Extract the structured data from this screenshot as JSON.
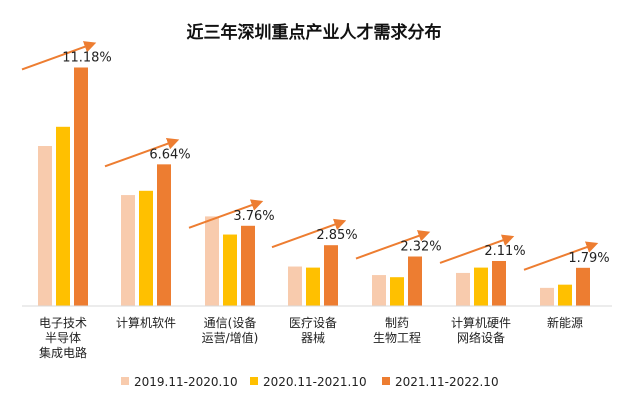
{
  "chart_data": {
    "type": "bar",
    "title": "近三年深圳重点产业人才需求分布",
    "xlabel": "",
    "ylabel": "",
    "categories": [
      [
        "电子技术",
        "半导体",
        "集成电路"
      ],
      [
        "计算机软件"
      ],
      [
        "通信(设备",
        "运营/增值)"
      ],
      [
        "医疗设备",
        "器械"
      ],
      [
        "制药",
        "生物工程"
      ],
      [
        "计算机硬件",
        "网络设备"
      ],
      [
        "新能源"
      ]
    ],
    "series": [
      {
        "name": "2019.11-2020.10",
        "color": "#F8CBAD",
        "values": [
          7.5,
          5.2,
          4.2,
          1.85,
          1.45,
          1.55,
          0.85
        ]
      },
      {
        "name": "2020.11-2021.10",
        "color": "#FFC000",
        "values": [
          8.4,
          5.4,
          3.35,
          1.8,
          1.35,
          1.8,
          1.0
        ]
      },
      {
        "name": "2021.11-2022.10",
        "color": "#ED7D31",
        "values": [
          11.18,
          6.64,
          3.76,
          2.85,
          2.32,
          2.11,
          1.79
        ]
      }
    ],
    "value_labels": [
      "11.18%",
      "6.64%",
      "3.76%",
      "2.85%",
      "2.32%",
      "2.11%",
      "1.79%"
    ],
    "trend_arrows": true,
    "ylim": [
      0,
      12
    ],
    "grid": false,
    "legend_position": "bottom"
  }
}
